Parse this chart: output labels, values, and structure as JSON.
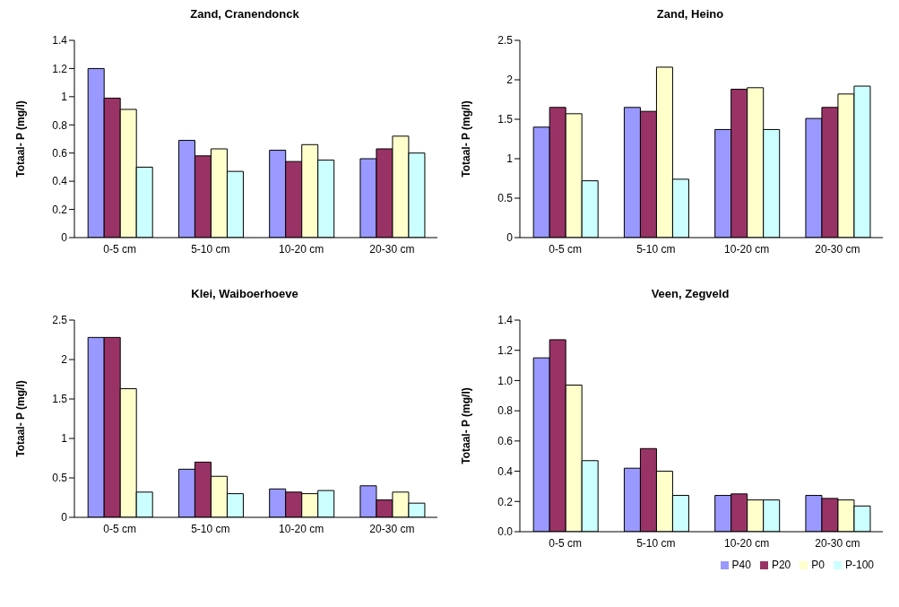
{
  "chart_data": [
    {
      "type": "bar",
      "title": "Zand, Cranendonck",
      "ylabel": "Totaal- P (mg/l)",
      "categories": [
        "0-5 cm",
        "5-10 cm",
        "10-20 cm",
        "20-30 cm"
      ],
      "ylim": [
        0,
        1.4
      ],
      "yticks": [
        0,
        0.2,
        0.4,
        0.6,
        0.8,
        1,
        1.2,
        1.4
      ],
      "grid": false,
      "legend": false,
      "series": [
        {
          "color": "#9999ff",
          "values": [
            1.2,
            0.69,
            0.62,
            0.56
          ]
        },
        {
          "color": "#993366",
          "values": [
            0.99,
            0.58,
            0.54,
            0.63
          ]
        },
        {
          "color": "#ffffcc",
          "values": [
            0.91,
            0.63,
            0.66,
            0.72
          ]
        },
        {
          "color": "#ccffff",
          "values": [
            0.5,
            0.47,
            0.55,
            0.6
          ]
        }
      ]
    },
    {
      "type": "bar",
      "title": "Zand, Heino",
      "ylabel": "Totaal- P (mg/l)",
      "categories": [
        "0-5 cm",
        "5-10 cm",
        "10-20 cm",
        "20-30 cm"
      ],
      "ylim": [
        0,
        2.5
      ],
      "yticks": [
        0,
        0.5,
        1,
        1.5,
        2,
        2.5
      ],
      "grid": false,
      "legend": false,
      "series": [
        {
          "color": "#9999ff",
          "values": [
            1.4,
            1.65,
            1.37,
            1.51
          ]
        },
        {
          "color": "#993366",
          "values": [
            1.65,
            1.6,
            1.88,
            1.65
          ]
        },
        {
          "color": "#ffffcc",
          "values": [
            1.57,
            2.16,
            1.9,
            1.82
          ]
        },
        {
          "color": "#ccffff",
          "values": [
            0.72,
            0.74,
            1.37,
            1.92
          ]
        }
      ]
    },
    {
      "type": "bar",
      "title": "Klei, Waiboerhoeve",
      "ylabel": "Totaal- P (mg/l)",
      "categories": [
        "0-5 cm",
        "5-10 cm",
        "10-20 cm",
        "20-30 cm"
      ],
      "ylim": [
        0,
        2.5
      ],
      "yticks": [
        0,
        0.5,
        1,
        1.5,
        2,
        2.5
      ],
      "grid": false,
      "legend": false,
      "series": [
        {
          "color": "#9999ff",
          "values": [
            2.28,
            0.61,
            0.36,
            0.4
          ]
        },
        {
          "color": "#993366",
          "values": [
            2.28,
            0.7,
            0.32,
            0.22
          ]
        },
        {
          "color": "#ffffcc",
          "values": [
            1.63,
            0.52,
            0.3,
            0.32
          ]
        },
        {
          "color": "#ccffff",
          "values": [
            0.32,
            0.3,
            0.34,
            0.18
          ]
        }
      ]
    },
    {
      "type": "bar",
      "title": "Veen, Zegveld",
      "ylabel": "Totaal- P (mg/l)",
      "categories": [
        "0-5 cm",
        "5-10 cm",
        "10-20 cm",
        "20-30 cm"
      ],
      "ylim": [
        0,
        1.4
      ],
      "yticks": [
        {
          "value": 0,
          "label": "0.0"
        },
        {
          "value": 0.2,
          "label": "0.2"
        },
        {
          "value": 0.4,
          "label": "0.4"
        },
        {
          "value": 0.6,
          "label": "0.6"
        },
        {
          "value": 0.8,
          "label": "0.8"
        },
        {
          "value": 1,
          "label": "1.0"
        },
        {
          "value": 1.2,
          "label": "1.2"
        },
        {
          "value": 1.4,
          "label": "1.4"
        }
      ],
      "grid": false,
      "legend": "bottom",
      "series": [
        {
          "name": "P40",
          "color": "#9999ff",
          "values": [
            1.15,
            0.42,
            0.24,
            0.24
          ]
        },
        {
          "name": "P20",
          "color": "#993366",
          "values": [
            1.27,
            0.55,
            0.25,
            0.22
          ]
        },
        {
          "name": "P0",
          "color": "#ffffcc",
          "values": [
            0.97,
            0.4,
            0.21,
            0.21
          ]
        },
        {
          "name": "P-100",
          "color": "#ccffff",
          "values": [
            0.47,
            0.24,
            0.21,
            0.17
          ]
        }
      ]
    }
  ]
}
